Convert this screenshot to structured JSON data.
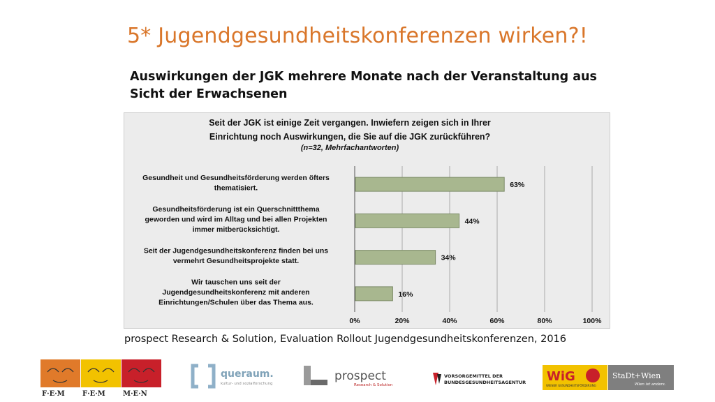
{
  "slide": {
    "title": "5* Jugendgesundheitskonferenzen wirken?!",
    "subtitle": "Auswirkungen der JGK mehrere Monate nach der Veranstaltung aus Sicht der Erwachsenen",
    "source": "prospect Research & Solution, Evaluation Rollout Jugendgesundheitskonferenzen, 2016"
  },
  "chart_data": {
    "type": "bar",
    "orientation": "horizontal",
    "title_lines": [
      "Seit der JGK ist einige Zeit vergangen. Inwiefern zeigen sich in Ihrer",
      "Einrichtung noch Auswirkungen, die Sie auf die JGK zurückführen?"
    ],
    "subtitle": "(n=32, Mehrfachantworten)",
    "categories": [
      [
        "Gesundheit und Gesundheitsförderung werden öfters",
        "thematisiert."
      ],
      [
        "Gesundheitsförderung ist ein Querschnittthema",
        "geworden und wird im Alltag und bei allen Projekten",
        "immer mitberücksichtigt."
      ],
      [
        "Seit der Jugendgesundheitskonferenz finden bei uns",
        "vermehrt Gesundheitsprojekte statt."
      ],
      [
        "Wir tauschen uns seit der",
        "Jugendgesundheitskonferenz mit anderen",
        "Einrichtungen/Schulen über das Thema aus."
      ]
    ],
    "values": [
      63,
      44,
      34,
      16
    ],
    "value_labels": [
      "63%",
      "44%",
      "34%",
      "16%"
    ],
    "xlim": [
      0,
      100
    ],
    "xticks": [
      "0%",
      "20%",
      "40%",
      "60%",
      "80%",
      "100%"
    ],
    "grid": true,
    "bar_color": "#a8b78f",
    "bar_edge_color": "#7d8c68",
    "background_color": "#ececec"
  },
  "logos": {
    "fem": {
      "letters": [
        "F·E·M",
        "F·E·M",
        "M·E·N"
      ],
      "colors": [
        "#e07a2a",
        "#f2c200",
        "#c8202a"
      ]
    },
    "queraum": {
      "text": "queraum.",
      "tagline": "kultur- und sozialforschung"
    },
    "prospect": {
      "text": "prospect",
      "tagline": "Research & Solution"
    },
    "bga": {
      "lines": [
        "VORSORGEMITTEL DER",
        "BUNDESGESUNDHEITSAGENTUR"
      ]
    },
    "wig": {
      "text": "WiG",
      "tagline": "WIENER GESUNDHEITSFÖRDERUNG"
    },
    "stadt": {
      "text": "StaDt+Wien",
      "tagline": "Wien ist anders."
    }
  }
}
